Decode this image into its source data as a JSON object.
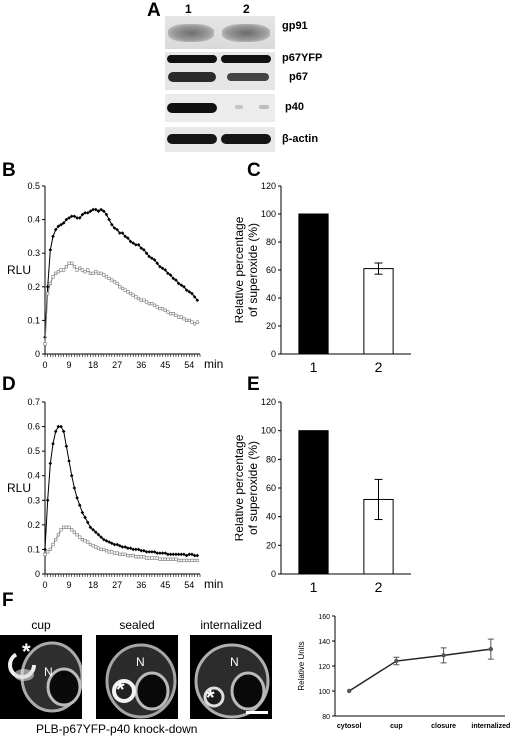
{
  "panels": [
    "A",
    "B",
    "C",
    "D",
    "E",
    "F"
  ],
  "western_blot": {
    "lane_labels": [
      "1",
      "2"
    ],
    "bands": [
      "gp91",
      "p67YFP",
      "p67",
      "p40",
      "β-actin"
    ]
  },
  "chart_data": [
    {
      "id": "B",
      "type": "line",
      "title": "",
      "xlabel": "min",
      "ylabel": "RLU",
      "xlim": [
        0,
        58
      ],
      "ylim": [
        0,
        0.5
      ],
      "xticks": [
        0,
        9,
        18,
        27,
        36,
        45,
        54
      ],
      "yticks": [
        0,
        0.1,
        0.2,
        0.3,
        0.4,
        0.5
      ],
      "series": [
        {
          "color": "#000000",
          "marker": "diamond",
          "x": [
            0,
            1,
            2,
            3,
            4,
            5,
            6,
            7,
            8,
            9,
            10,
            11,
            12,
            13,
            14,
            15,
            16,
            17,
            18,
            19,
            20,
            21,
            22,
            23,
            24,
            25,
            26,
            27,
            28,
            29,
            30,
            31,
            32,
            33,
            34,
            35,
            36,
            37,
            38,
            39,
            40,
            41,
            42,
            43,
            44,
            45,
            46,
            47,
            48,
            49,
            50,
            51,
            52,
            53,
            54,
            55,
            56,
            57
          ],
          "y": [
            0.05,
            0.2,
            0.31,
            0.35,
            0.37,
            0.38,
            0.385,
            0.39,
            0.4,
            0.405,
            0.41,
            0.41,
            0.405,
            0.405,
            0.415,
            0.42,
            0.42,
            0.425,
            0.43,
            0.43,
            0.425,
            0.43,
            0.425,
            0.415,
            0.4,
            0.385,
            0.375,
            0.37,
            0.36,
            0.36,
            0.35,
            0.345,
            0.335,
            0.33,
            0.325,
            0.325,
            0.315,
            0.31,
            0.3,
            0.29,
            0.285,
            0.28,
            0.27,
            0.26,
            0.255,
            0.25,
            0.24,
            0.235,
            0.225,
            0.22,
            0.21,
            0.205,
            0.2,
            0.19,
            0.185,
            0.18,
            0.17,
            0.16
          ]
        },
        {
          "color": "#777777",
          "marker": "square",
          "x": [
            0,
            1,
            2,
            3,
            4,
            5,
            6,
            7,
            8,
            9,
            10,
            11,
            12,
            13,
            14,
            15,
            16,
            17,
            18,
            19,
            20,
            21,
            22,
            23,
            24,
            25,
            26,
            27,
            28,
            29,
            30,
            31,
            32,
            33,
            34,
            35,
            36,
            37,
            38,
            39,
            40,
            41,
            42,
            43,
            44,
            45,
            46,
            47,
            48,
            49,
            50,
            51,
            52,
            53,
            54,
            55,
            56,
            57
          ],
          "y": [
            0.03,
            0.18,
            0.21,
            0.23,
            0.24,
            0.245,
            0.25,
            0.25,
            0.26,
            0.27,
            0.27,
            0.26,
            0.25,
            0.255,
            0.25,
            0.245,
            0.25,
            0.24,
            0.24,
            0.245,
            0.24,
            0.24,
            0.235,
            0.23,
            0.225,
            0.22,
            0.215,
            0.21,
            0.2,
            0.195,
            0.19,
            0.185,
            0.18,
            0.175,
            0.17,
            0.165,
            0.16,
            0.16,
            0.155,
            0.15,
            0.15,
            0.145,
            0.14,
            0.135,
            0.135,
            0.13,
            0.125,
            0.12,
            0.12,
            0.115,
            0.11,
            0.11,
            0.105,
            0.1,
            0.1,
            0.095,
            0.09,
            0.095
          ]
        }
      ]
    },
    {
      "id": "C",
      "type": "bar",
      "title": "",
      "xlabel": "",
      "ylabel": "Relative percentage of superoxide (%)",
      "categories": [
        "1",
        "2"
      ],
      "values": [
        100,
        61
      ],
      "errors": [
        0,
        4
      ],
      "colors": [
        "#000000",
        "#ffffff"
      ],
      "ylim": [
        0,
        120
      ],
      "yticks": [
        0,
        20,
        40,
        60,
        80,
        100,
        120
      ]
    },
    {
      "id": "D",
      "type": "line",
      "title": "",
      "xlabel": "min",
      "ylabel": "RLU",
      "xlim": [
        0,
        58
      ],
      "ylim": [
        0,
        0.7
      ],
      "xticks": [
        0,
        9,
        18,
        27,
        36,
        45,
        54
      ],
      "yticks": [
        0,
        0.1,
        0.2,
        0.3,
        0.4,
        0.5,
        0.6,
        0.7
      ],
      "series": [
        {
          "color": "#000000",
          "marker": "diamond",
          "x": [
            0,
            1,
            2,
            3,
            4,
            5,
            6,
            7,
            8,
            9,
            10,
            11,
            12,
            13,
            14,
            15,
            16,
            17,
            18,
            19,
            20,
            21,
            22,
            23,
            24,
            25,
            26,
            27,
            28,
            29,
            30,
            31,
            32,
            33,
            34,
            35,
            36,
            37,
            38,
            39,
            40,
            41,
            42,
            43,
            44,
            45,
            46,
            47,
            48,
            49,
            50,
            51,
            52,
            53,
            54,
            55,
            56,
            57
          ],
          "y": [
            0.1,
            0.3,
            0.45,
            0.53,
            0.58,
            0.6,
            0.6,
            0.58,
            0.52,
            0.46,
            0.4,
            0.35,
            0.31,
            0.28,
            0.25,
            0.23,
            0.21,
            0.19,
            0.18,
            0.17,
            0.16,
            0.15,
            0.14,
            0.135,
            0.13,
            0.125,
            0.12,
            0.12,
            0.115,
            0.11,
            0.11,
            0.105,
            0.105,
            0.1,
            0.1,
            0.1,
            0.095,
            0.095,
            0.09,
            0.09,
            0.09,
            0.09,
            0.085,
            0.085,
            0.085,
            0.085,
            0.08,
            0.08,
            0.08,
            0.08,
            0.08,
            0.08,
            0.08,
            0.075,
            0.08,
            0.08,
            0.075,
            0.075
          ]
        },
        {
          "color": "#777777",
          "marker": "square",
          "x": [
            0,
            1,
            2,
            3,
            4,
            5,
            6,
            7,
            8,
            9,
            10,
            11,
            12,
            13,
            14,
            15,
            16,
            17,
            18,
            19,
            20,
            21,
            22,
            23,
            24,
            25,
            26,
            27,
            28,
            29,
            30,
            31,
            32,
            33,
            34,
            35,
            36,
            37,
            38,
            39,
            40,
            41,
            42,
            43,
            44,
            45,
            46,
            47,
            48,
            49,
            50,
            51,
            52,
            53,
            54,
            55,
            56,
            57
          ],
          "y": [
            0.08,
            0.09,
            0.1,
            0.12,
            0.14,
            0.16,
            0.18,
            0.19,
            0.19,
            0.19,
            0.18,
            0.17,
            0.16,
            0.15,
            0.14,
            0.135,
            0.13,
            0.12,
            0.115,
            0.11,
            0.105,
            0.1,
            0.1,
            0.095,
            0.09,
            0.09,
            0.085,
            0.085,
            0.08,
            0.08,
            0.08,
            0.075,
            0.075,
            0.075,
            0.07,
            0.07,
            0.07,
            0.07,
            0.065,
            0.065,
            0.065,
            0.065,
            0.065,
            0.06,
            0.06,
            0.06,
            0.06,
            0.06,
            0.06,
            0.06,
            0.055,
            0.055,
            0.055,
            0.055,
            0.055,
            0.055,
            0.055,
            0.055
          ]
        }
      ]
    },
    {
      "id": "E",
      "type": "bar",
      "title": "",
      "xlabel": "",
      "ylabel": "Relative percentage of superoxide (%)",
      "categories": [
        "1",
        "2"
      ],
      "values": [
        100,
        52
      ],
      "errors": [
        0,
        14
      ],
      "colors": [
        "#000000",
        "#ffffff"
      ],
      "ylim": [
        0,
        120
      ],
      "yticks": [
        0,
        20,
        40,
        60,
        80,
        100,
        120
      ]
    },
    {
      "id": "F-graph",
      "type": "line",
      "title": "",
      "xlabel": "",
      "ylabel": "Relative Units",
      "categories": [
        "cytosol",
        "cup",
        "closure",
        "internalized"
      ],
      "values": [
        100,
        124,
        128.5,
        133.5
      ],
      "errors": [
        0,
        3,
        6,
        8
      ],
      "ylim": [
        80,
        160
      ],
      "yticks": [
        80,
        100,
        120,
        140,
        160
      ]
    }
  ],
  "micrographs": {
    "titles": [
      "cup",
      "sealed",
      "internalized"
    ],
    "asterisk": "*",
    "nucleus_label": "N",
    "caption": "PLB-p67YFP-p40 knock-down"
  }
}
